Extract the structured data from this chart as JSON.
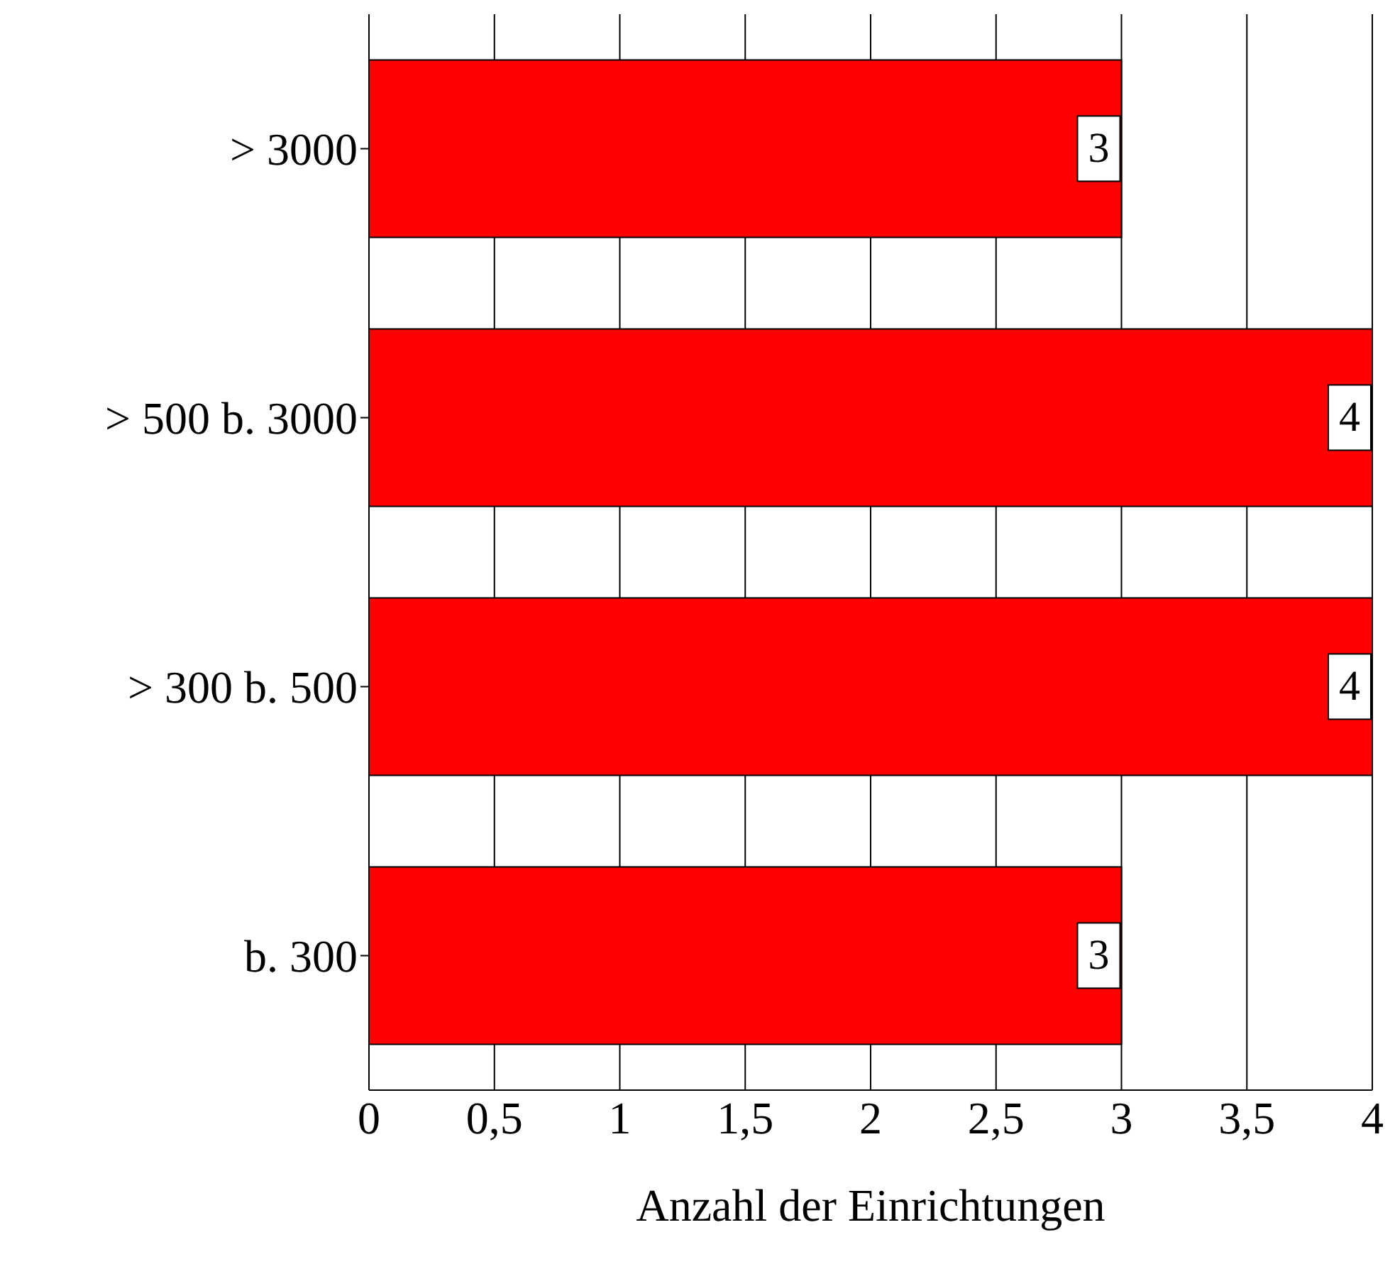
{
  "chart_data": {
    "type": "bar",
    "orientation": "horizontal",
    "xlabel": "Anzahl der Einrichtungen",
    "categories": [
      "> 3000",
      "> 500 b. 3000",
      "> 300 b. 500",
      "b. 300"
    ],
    "values": [
      3,
      4,
      4,
      3
    ],
    "color": "#ff0000",
    "xlim": [
      0,
      4
    ],
    "xticks": [
      0,
      {
        "value": 0.5,
        "label": "0,5"
      },
      1,
      {
        "value": 1.5,
        "label": "1,5"
      },
      2,
      {
        "value": 2.5,
        "label": "2,5"
      },
      3,
      {
        "value": 3.5,
        "label": "3,5"
      },
      4
    ],
    "grid": "x",
    "data_labels": true
  }
}
